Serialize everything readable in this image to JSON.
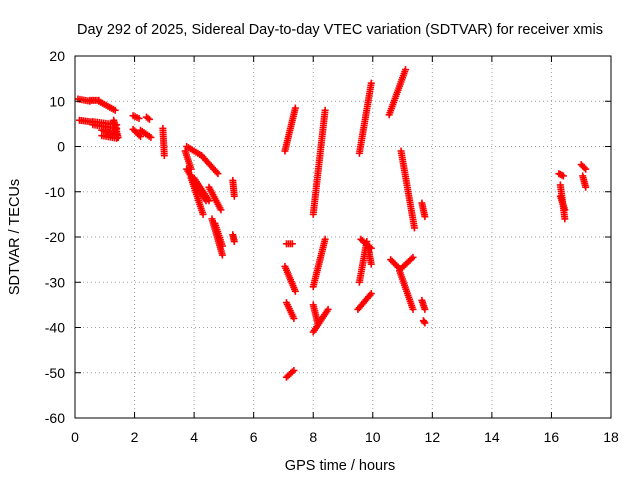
{
  "chart_data": {
    "type": "scatter",
    "title": "Day 292 of 2025, Sidereal Day-to-day VTEC variation (SDTVAR) for receiver xmis",
    "xlabel": "GPS time / hours",
    "ylabel": "SDTVAR / TECUs",
    "xlim": [
      0,
      18
    ],
    "ylim": [
      -60,
      20
    ],
    "xticks": [
      0,
      2,
      4,
      6,
      8,
      10,
      12,
      14,
      16,
      18
    ],
    "yticks": [
      20,
      10,
      0,
      -10,
      -20,
      -30,
      -40,
      -50,
      -60
    ],
    "grid": true,
    "marker": "+",
    "color": "#ff0000",
    "segments": [
      {
        "x": [
          0.1,
          0.5
        ],
        "y": [
          10.5,
          10.0
        ]
      },
      {
        "x": [
          0.5,
          0.8
        ],
        "y": [
          10.2,
          10.2
        ]
      },
      {
        "x": [
          0.8,
          1.35
        ],
        "y": [
          10.0,
          8.0
        ]
      },
      {
        "x": [
          0.15,
          0.6
        ],
        "y": [
          5.8,
          5.4
        ]
      },
      {
        "x": [
          0.6,
          1.4
        ],
        "y": [
          5.5,
          4.8
        ]
      },
      {
        "x": [
          0.6,
          1.4
        ],
        "y": [
          4.8,
          4.0
        ]
      },
      {
        "x": [
          0.9,
          1.4
        ],
        "y": [
          3.6,
          2.6
        ]
      },
      {
        "x": [
          0.9,
          1.4
        ],
        "y": [
          2.4,
          1.8
        ]
      },
      {
        "x": [
          1.3,
          1.45
        ],
        "y": [
          5.8,
          2.0
        ]
      },
      {
        "x": [
          1.95,
          2.15
        ],
        "y": [
          6.8,
          6.2
        ]
      },
      {
        "x": [
          2.4,
          2.5
        ],
        "y": [
          6.5,
          6.0
        ]
      },
      {
        "x": [
          1.95,
          2.2
        ],
        "y": [
          3.8,
          2.2
        ]
      },
      {
        "x": [
          2.2,
          2.55
        ],
        "y": [
          3.6,
          2.0
        ]
      },
      {
        "x": [
          2.95,
          3.0
        ],
        "y": [
          4.0,
          -2.0
        ]
      },
      {
        "x": [
          3.75,
          4.25
        ],
        "y": [
          0.0,
          -2.0
        ]
      },
      {
        "x": [
          4.25,
          4.8
        ],
        "y": [
          -2.0,
          -6.0
        ]
      },
      {
        "x": [
          3.7,
          3.9
        ],
        "y": [
          -1.0,
          -5.0
        ]
      },
      {
        "x": [
          3.75,
          4.4
        ],
        "y": [
          -5.0,
          -12.0
        ]
      },
      {
        "x": [
          3.9,
          4.3
        ],
        "y": [
          -7.0,
          -15.0
        ]
      },
      {
        "x": [
          4.0,
          4.5
        ],
        "y": [
          -7.0,
          -12.0
        ]
      },
      {
        "x": [
          4.5,
          4.9
        ],
        "y": [
          -9.0,
          -14.0
        ]
      },
      {
        "x": [
          4.6,
          4.95
        ],
        "y": [
          -16.0,
          -24.0
        ]
      },
      {
        "x": [
          4.7,
          4.95
        ],
        "y": [
          -17.0,
          -22.0
        ]
      },
      {
        "x": [
          5.3,
          5.35
        ],
        "y": [
          -7.5,
          -11.0
        ]
      },
      {
        "x": [
          5.3,
          5.35
        ],
        "y": [
          -19.5,
          -21.0
        ]
      },
      {
        "x": [
          7.05,
          7.4
        ],
        "y": [
          -1.0,
          8.5
        ]
      },
      {
        "x": [
          7.1,
          7.3
        ],
        "y": [
          -21.5,
          -21.5
        ]
      },
      {
        "x": [
          7.05,
          7.4
        ],
        "y": [
          -26.5,
          -32.0
        ]
      },
      {
        "x": [
          7.1,
          7.35
        ],
        "y": [
          -34.5,
          -38.0
        ]
      },
      {
        "x": [
          7.1,
          7.35
        ],
        "y": [
          -51.0,
          -49.5
        ]
      },
      {
        "x": [
          8.0,
          8.4
        ],
        "y": [
          -15.0,
          8.0
        ]
      },
      {
        "x": [
          8.0,
          8.4
        ],
        "y": [
          -31.0,
          -20.5
        ]
      },
      {
        "x": [
          8.0,
          8.5
        ],
        "y": [
          -41.0,
          -36.0
        ]
      },
      {
        "x": [
          8.0,
          8.15
        ],
        "y": [
          -35.0,
          -39.0
        ]
      },
      {
        "x": [
          9.55,
          9.95
        ],
        "y": [
          -1.5,
          14.0
        ]
      },
      {
        "x": [
          9.55,
          9.8
        ],
        "y": [
          -30.0,
          -21.0
        ]
      },
      {
        "x": [
          9.6,
          9.95
        ],
        "y": [
          -20.5,
          -22.5
        ]
      },
      {
        "x": [
          9.85,
          9.95
        ],
        "y": [
          -22.5,
          -26.0
        ]
      },
      {
        "x": [
          9.5,
          9.95
        ],
        "y": [
          -36.0,
          -32.5
        ]
      },
      {
        "x": [
          10.55,
          11.1
        ],
        "y": [
          7.0,
          17.0
        ]
      },
      {
        "x": [
          10.95,
          11.4
        ],
        "y": [
          -1.0,
          -18.0
        ]
      },
      {
        "x": [
          10.6,
          10.9
        ],
        "y": [
          -25.0,
          -27.0
        ]
      },
      {
        "x": [
          10.9,
          11.35
        ],
        "y": [
          -27.5,
          -36.0
        ]
      },
      {
        "x": [
          10.95,
          11.35
        ],
        "y": [
          -27.0,
          -24.5
        ]
      },
      {
        "x": [
          11.65,
          11.75
        ],
        "y": [
          -12.5,
          -15.5
        ]
      },
      {
        "x": [
          11.65,
          11.75
        ],
        "y": [
          -34.0,
          -36.0
        ]
      },
      {
        "x": [
          11.7,
          11.75
        ],
        "y": [
          -38.5,
          -39.0
        ]
      },
      {
        "x": [
          16.25,
          16.4
        ],
        "y": [
          -6.0,
          -6.5
        ]
      },
      {
        "x": [
          16.3,
          16.45
        ],
        "y": [
          -8.5,
          -16.0
        ]
      },
      {
        "x": [
          16.3,
          16.45
        ],
        "y": [
          -11.0,
          -14.0
        ]
      },
      {
        "x": [
          17.0,
          17.15
        ],
        "y": [
          -4.0,
          -5.0
        ]
      },
      {
        "x": [
          17.05,
          17.15
        ],
        "y": [
          -6.5,
          -9.0
        ]
      }
    ]
  }
}
